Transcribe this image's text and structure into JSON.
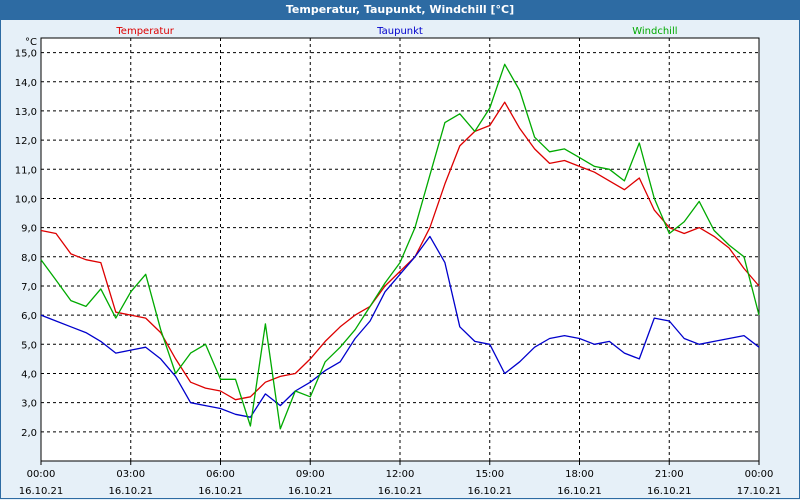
{
  "window": {
    "title": "Temperatur, Taupunkt, Windchill [°C]"
  },
  "chart_data": {
    "type": "line",
    "title": "Temperatur, Taupunkt, Windchill [°C]",
    "unit": "°C",
    "ylim": [
      1.0,
      15.5
    ],
    "yticks": [
      "2.0",
      "3.0",
      "4.0",
      "5.0",
      "6.0",
      "7.0",
      "8.0",
      "9.0",
      "10.0",
      "11.0",
      "12.0",
      "13.0",
      "14.0",
      "15.0"
    ],
    "grid": true,
    "xticks": [
      {
        "time": "00:00",
        "date": "16.10.21"
      },
      {
        "time": "03:00",
        "date": "16.10.21"
      },
      {
        "time": "06:00",
        "date": "16.10.21"
      },
      {
        "time": "09:00",
        "date": "16.10.21"
      },
      {
        "time": "12:00",
        "date": "16.10.21"
      },
      {
        "time": "15:00",
        "date": "16.10.21"
      },
      {
        "time": "18:00",
        "date": "16.10.21"
      },
      {
        "time": "21:00",
        "date": "16.10.21"
      },
      {
        "time": "00:00",
        "date": "17.10.21"
      }
    ],
    "x_hours": [
      0,
      0.5,
      1,
      1.5,
      2,
      2.5,
      3,
      3.5,
      4,
      4.5,
      5,
      5.5,
      6,
      6.5,
      7,
      7.5,
      8,
      8.5,
      9,
      9.5,
      10,
      10.5,
      11,
      11.5,
      12,
      12.5,
      13,
      13.5,
      14,
      14.5,
      15,
      15.5,
      16,
      16.5,
      17,
      17.5,
      18,
      18.5,
      19,
      19.5,
      20,
      20.5,
      21,
      21.5,
      22,
      22.5,
      23,
      23.5,
      24
    ],
    "series": [
      {
        "name": "Temperatur",
        "color": "#dd0000",
        "values": [
          8.9,
          8.8,
          8.1,
          7.9,
          7.8,
          6.1,
          6.0,
          5.9,
          5.4,
          4.5,
          3.7,
          3.5,
          3.4,
          3.1,
          3.2,
          3.7,
          3.9,
          4.0,
          4.5,
          5.1,
          5.6,
          6.0,
          6.3,
          7.0,
          7.5,
          8.0,
          9.0,
          10.5,
          11.8,
          12.3,
          12.5,
          13.3,
          12.4,
          11.7,
          11.2,
          11.3,
          11.1,
          10.9,
          10.6,
          10.3,
          10.7,
          9.6,
          9.0,
          8.8,
          9.0,
          8.7,
          8.3,
          7.6,
          7.0
        ]
      },
      {
        "name": "Taupunkt",
        "color": "#0000cc",
        "values": [
          6.0,
          5.8,
          5.6,
          5.4,
          5.1,
          4.7,
          4.8,
          4.9,
          4.5,
          3.9,
          3.0,
          2.9,
          2.8,
          2.6,
          2.5,
          3.3,
          2.9,
          3.4,
          3.7,
          4.1,
          4.4,
          5.2,
          5.8,
          6.8,
          7.4,
          8.0,
          8.7,
          7.8,
          5.6,
          5.1,
          5.0,
          4.0,
          4.4,
          4.9,
          5.2,
          5.3,
          5.2,
          5.0,
          5.1,
          4.7,
          4.5,
          5.9,
          5.8,
          5.2,
          5.0,
          5.1,
          5.2,
          5.3,
          4.9
        ]
      },
      {
        "name": "Windchill",
        "color": "#00aa00",
        "values": [
          7.9,
          7.2,
          6.5,
          6.3,
          6.9,
          5.9,
          6.8,
          7.4,
          5.5,
          4.0,
          4.7,
          5.0,
          3.8,
          3.8,
          2.2,
          5.7,
          2.1,
          3.4,
          3.2,
          4.4,
          4.9,
          5.5,
          6.3,
          7.1,
          7.8,
          9.0,
          10.8,
          12.6,
          12.9,
          12.3,
          13.1,
          14.6,
          13.7,
          12.1,
          11.6,
          11.7,
          11.4,
          11.1,
          11.0,
          10.6,
          11.9,
          10.0,
          8.8,
          9.2,
          9.9,
          8.9,
          8.4,
          8.0,
          6.0
        ]
      }
    ]
  }
}
